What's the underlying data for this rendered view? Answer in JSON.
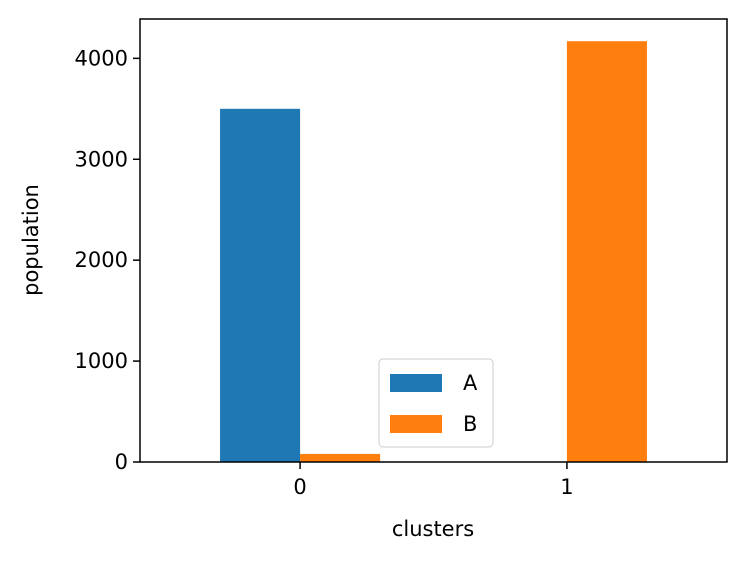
{
  "chart_data": {
    "type": "bar",
    "categories": [
      "0",
      "1"
    ],
    "series": [
      {
        "name": "A",
        "color": "#1f77b4",
        "values": [
          3500,
          0
        ]
      },
      {
        "name": "B",
        "color": "#ff7f0e",
        "values": [
          80,
          4170
        ]
      }
    ],
    "xlabel": "clusters",
    "ylabel": "population",
    "yticks": [
      0,
      1000,
      2000,
      3000,
      4000
    ],
    "ylim": [
      0,
      4390
    ],
    "legend_position": "lower-center",
    "grid": false
  }
}
